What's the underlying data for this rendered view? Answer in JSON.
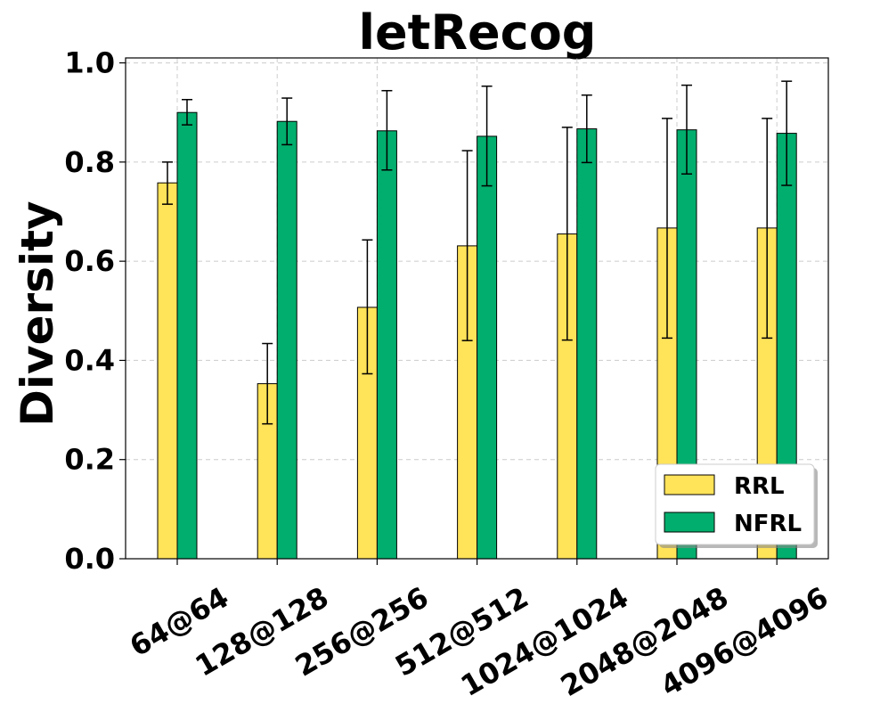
{
  "chart_data": {
    "type": "bar",
    "title": "letRecog",
    "xlabel": "",
    "ylabel": "Diversity",
    "ylim": [
      0,
      1.01
    ],
    "yticks": [
      "0.0",
      "0.2",
      "0.4",
      "0.6",
      "0.8",
      "1.0"
    ],
    "categories": [
      "64@64",
      "128@128",
      "256@256",
      "512@512",
      "1024@1024",
      "2048@2048",
      "4096@4096"
    ],
    "series": [
      {
        "name": "RRL",
        "color": "#FFE359",
        "values": [
          0.758,
          0.353,
          0.507,
          0.631,
          0.655,
          0.667,
          0.667
        ],
        "err_low": [
          0.715,
          0.272,
          0.373,
          0.44,
          0.441,
          0.445,
          0.445
        ],
        "err_high": [
          0.8,
          0.434,
          0.643,
          0.823,
          0.87,
          0.888,
          0.888
        ]
      },
      {
        "name": "NFRL",
        "color": "#02AE6D",
        "values": [
          0.9,
          0.882,
          0.863,
          0.852,
          0.867,
          0.865,
          0.858
        ],
        "err_low": [
          0.875,
          0.835,
          0.784,
          0.752,
          0.799,
          0.776,
          0.753
        ],
        "err_high": [
          0.926,
          0.929,
          0.944,
          0.953,
          0.935,
          0.955,
          0.963
        ]
      }
    ],
    "grid": true,
    "legend_position": "bottom-right"
  }
}
